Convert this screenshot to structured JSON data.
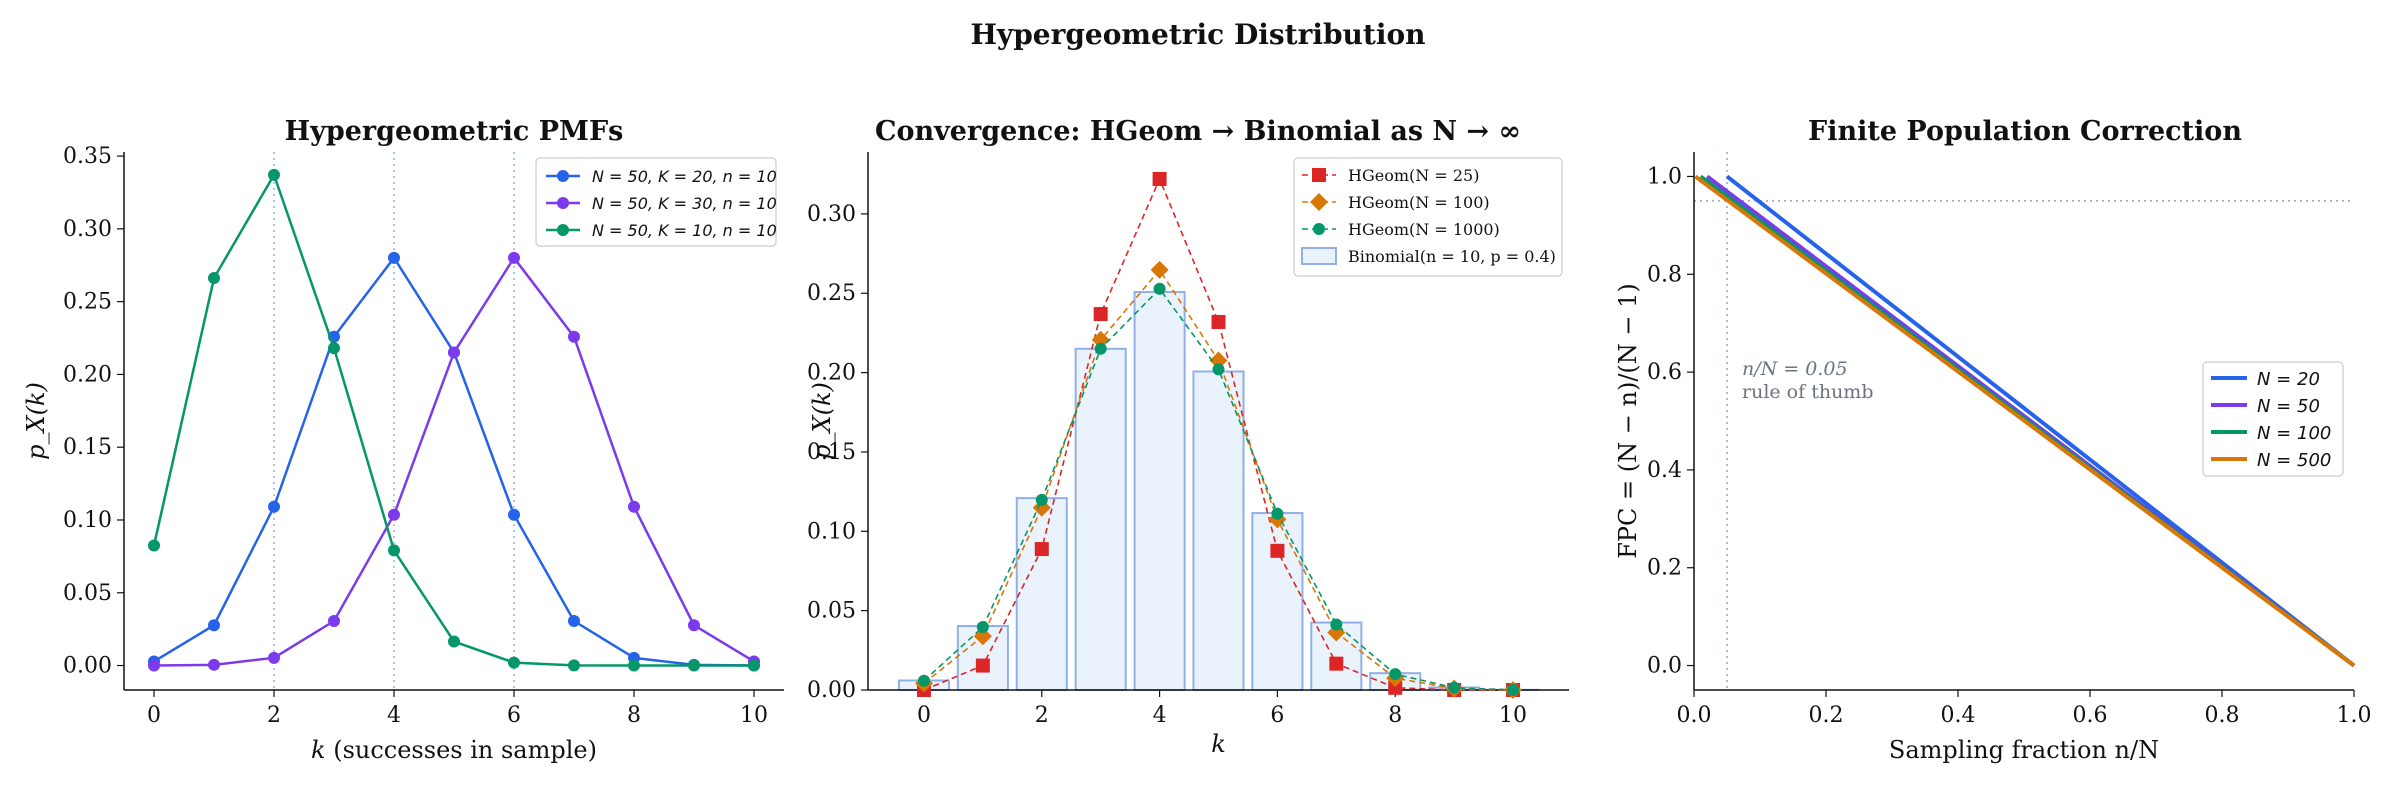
{
  "figure_title": "Hypergeometric Distribution",
  "chart_data": [
    {
      "type": "line",
      "title": "Hypergeometric PMFs",
      "xlabel": "k (successes in sample)",
      "ylabel": "p_X(k)",
      "xlim": [
        -0.5,
        10.5
      ],
      "ylim": [
        -0.0168,
        0.3528
      ],
      "xticks": [
        0,
        2,
        4,
        6,
        8,
        10
      ],
      "yticks": [
        0.0,
        0.05,
        0.1,
        0.15,
        0.2,
        0.25,
        0.3,
        0.35
      ],
      "ytick_labels": [
        "0.00",
        "0.05",
        "0.10",
        "0.15",
        "0.20",
        "0.25",
        "0.30",
        "0.35"
      ],
      "legend": "top-right",
      "reference_lines_x": [
        2,
        4,
        6
      ],
      "x": [
        0,
        1,
        2,
        3,
        4,
        5,
        6,
        7,
        8,
        9,
        10
      ],
      "series": [
        {
          "name": "N = 50, K = 20, n = 10",
          "color": "#2563eb",
          "marker": "circle",
          "values": [
            0.0028,
            0.0277,
            0.1091,
            0.2259,
            0.2801,
            0.2151,
            0.1036,
            0.0306,
            0.0053,
            0.0005,
            2e-05
          ]
        },
        {
          "name": "N = 50, K = 30, n = 10",
          "color": "#7c3aed",
          "marker": "circle",
          "values": [
            2e-05,
            0.0005,
            0.0053,
            0.0306,
            0.1036,
            0.2151,
            0.2801,
            0.2259,
            0.1091,
            0.0277,
            0.0028
          ]
        },
        {
          "name": "N = 50, K = 10, n = 10",
          "color": "#059669",
          "marker": "circle",
          "values": [
            0.0825,
            0.2662,
            0.3371,
            0.2181,
            0.0791,
            0.0165,
            0.002,
            0.0001,
            0.0,
            0.0,
            0.0
          ]
        }
      ]
    },
    {
      "type": "line",
      "title": "Convergence: HGeom → Binomial as N → ∞",
      "xlabel": "k",
      "ylabel": "p_X(k)",
      "xlim": [
        -0.95,
        10.95
      ],
      "ylim": [
        0,
        0.339
      ],
      "xticks": [
        0,
        2,
        4,
        6,
        8,
        10
      ],
      "yticks": [
        0.0,
        0.05,
        0.1,
        0.15,
        0.2,
        0.25,
        0.3
      ],
      "ytick_labels": [
        "0.00",
        "0.05",
        "0.10",
        "0.15",
        "0.20",
        "0.25",
        "0.30"
      ],
      "legend": "top-right",
      "x": [
        0,
        1,
        2,
        3,
        4,
        5,
        6,
        7,
        8,
        9,
        10
      ],
      "bars": {
        "name": "Binomial(n = 10, p = 0.4)",
        "fill": "#eaf2fc",
        "stroke": "#8fb0e8",
        "values": [
          0.006,
          0.0403,
          0.1209,
          0.215,
          0.2508,
          0.2007,
          0.1115,
          0.0425,
          0.0106,
          0.0016,
          0.0001
        ]
      },
      "series": [
        {
          "name": "HGeom(N = 25)",
          "color": "#dc2626",
          "marker": "square",
          "values": [
            0.0,
            0.0154,
            0.0888,
            0.2369,
            0.322,
            0.2319,
            0.0877,
            0.0166,
            0.0014,
            0.0,
            0.0
          ]
        },
        {
          "name": "HGeom(N = 100)",
          "color": "#d97706",
          "marker": "diamond",
          "values": [
            0.0042,
            0.0339,
            0.1148,
            0.2206,
            0.2647,
            0.2076,
            0.1075,
            0.0362,
            0.0075,
            0.0009,
            0.0
          ]
        },
        {
          "name": "HGeom(N = 1000)",
          "color": "#059669",
          "marker": "circle",
          "values": [
            0.0058,
            0.0397,
            0.1198,
            0.215,
            0.2528,
            0.202,
            0.1111,
            0.0413,
            0.01,
            0.0014,
            0.0001
          ]
        }
      ]
    },
    {
      "type": "line",
      "title": "Finite Population Correction",
      "xlabel": "Sampling fraction n/N",
      "ylabel": "FPC = (N − n)/(N − 1)",
      "xlim": [
        0,
        1
      ],
      "ylim": [
        -0.05,
        1.05
      ],
      "xticks": [
        0.0,
        0.2,
        0.4,
        0.6,
        0.8,
        1.0
      ],
      "xtick_labels": [
        "0.0",
        "0.2",
        "0.4",
        "0.6",
        "0.8",
        "1.0"
      ],
      "yticks": [
        0.0,
        0.2,
        0.4,
        0.6,
        0.8,
        1.0
      ],
      "ytick_labels": [
        "0.0",
        "0.2",
        "0.4",
        "0.6",
        "0.8",
        "1.0"
      ],
      "legend": "right",
      "reference_line_x": 0.05,
      "reference_line_y": 0.95,
      "annotation": {
        "line1": "n/N = 0.05",
        "line2": "rule of thumb"
      },
      "series": [
        {
          "name": "N = 20",
          "N": 20,
          "color": "#2563eb"
        },
        {
          "name": "N = 50",
          "N": 50,
          "color": "#7c3aed"
        },
        {
          "name": "N = 100",
          "N": 100,
          "color": "#059669"
        },
        {
          "name": "N = 500",
          "N": 500,
          "color": "#d97706"
        }
      ]
    }
  ]
}
